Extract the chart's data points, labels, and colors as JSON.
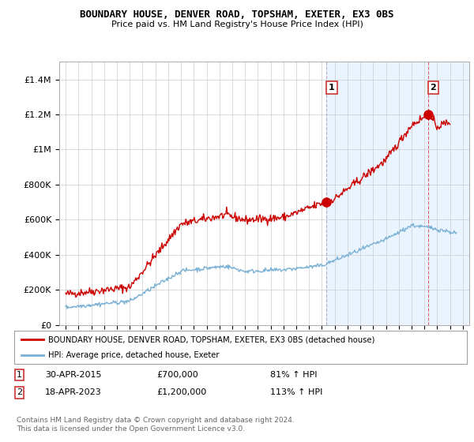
{
  "title": "BOUNDARY HOUSE, DENVER ROAD, TOPSHAM, EXETER, EX3 0BS",
  "subtitle": "Price paid vs. HM Land Registry's House Price Index (HPI)",
  "legend_line1": "BOUNDARY HOUSE, DENVER ROAD, TOPSHAM, EXETER, EX3 0BS (detached house)",
  "legend_line2": "HPI: Average price, detached house, Exeter",
  "annotation1_date": "30-APR-2015",
  "annotation1_price": "£700,000",
  "annotation1_hpi": "81% ↑ HPI",
  "annotation2_date": "18-APR-2023",
  "annotation2_price": "£1,200,000",
  "annotation2_hpi": "113% ↑ HPI",
  "footer": "Contains HM Land Registry data © Crown copyright and database right 2024.\nThis data is licensed under the Open Government Licence v3.0.",
  "red_color": "#cc0000",
  "blue_color": "#7ab0d4",
  "shade_color": "#ddeeff",
  "background_color": "#ffffff",
  "grid_color": "#cccccc",
  "ylim": [
    0,
    1500000
  ],
  "yticks": [
    0,
    200000,
    400000,
    600000,
    800000,
    1000000,
    1200000,
    1400000
  ],
  "ytick_labels": [
    "£0",
    "£200K",
    "£400K",
    "£600K",
    "£800K",
    "£1M",
    "£1.2M",
    "£1.4M"
  ],
  "sale1_x": 2015.33,
  "sale1_y": 700000,
  "sale2_x": 2023.3,
  "sale2_y": 1200000,
  "xmin": 1994.5,
  "xmax": 2026.5
}
